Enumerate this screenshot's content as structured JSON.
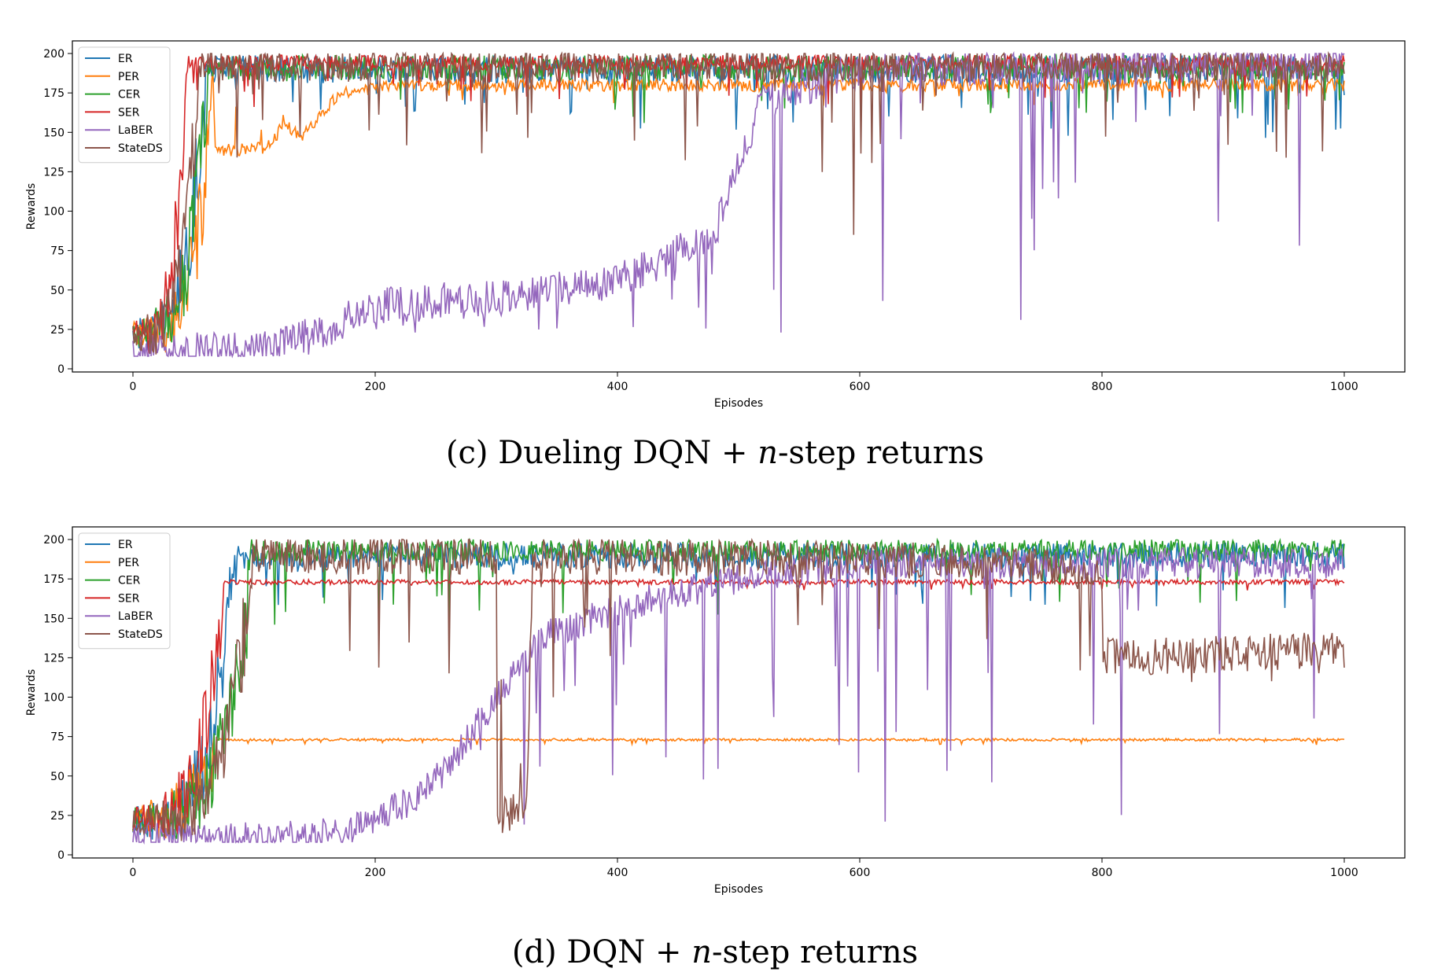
{
  "chart_data": [
    {
      "type": "line",
      "caption": {
        "prefix": "(c) Dueling DQN + ",
        "italic": "n",
        "suffix": "-step returns"
      },
      "xlabel": "Episodes",
      "ylabel": "Rewards",
      "xlim": [
        -50,
        1050
      ],
      "ylim": [
        -2,
        208
      ],
      "xticks": [
        0,
        200,
        400,
        600,
        800,
        1000
      ],
      "yticks": [
        0,
        25,
        50,
        75,
        100,
        125,
        150,
        175,
        200
      ],
      "grid": false,
      "legend_position": "top-left",
      "series": [
        {
          "name": "ER",
          "color": "#1f77b4",
          "model": {
            "rise": 60,
            "start": 22,
            "noise_early": 8,
            "plateau": 190,
            "noise": 9,
            "floor": 150,
            "cap": 200
          }
        },
        {
          "name": "PER",
          "color": "#ff7f0e",
          "model": {
            "rise": 68,
            "start": 22,
            "noise_early": 8,
            "stages": [
              [
                55,
                138
              ],
              [
                110,
                140
              ],
              [
                125,
                155
              ],
              [
                140,
                148
              ],
              [
                170,
                175
              ],
              [
                220,
                180
              ]
            ],
            "plateau": 181,
            "noise": 4,
            "floor": 170,
            "cap": 200
          }
        },
        {
          "name": "CER",
          "color": "#2ca02c",
          "model": {
            "rise": 62,
            "start": 22,
            "noise_early": 8,
            "plateau": 191,
            "noise": 8,
            "floor": 155,
            "cap": 200
          }
        },
        {
          "name": "SER",
          "color": "#d62728",
          "model": {
            "rise": 45,
            "start": 22,
            "noise_early": 8,
            "plateau": 194,
            "noise": 5,
            "floor": 170,
            "cap": 200
          }
        },
        {
          "name": "LaBER",
          "color": "#9467bd",
          "model": {
            "rise": 0,
            "start": 15,
            "noise_early": 3,
            "stages": [
              [
                100,
                11
              ],
              [
                150,
                22
              ],
              [
                200,
                40
              ],
              [
                300,
                45
              ],
              [
                400,
                55
              ],
              [
                480,
                85
              ],
              [
                520,
                170
              ],
              [
                600,
                190
              ],
              [
                1000,
                195
              ]
            ],
            "plateau": 195,
            "noise": 12,
            "floor": 8,
            "cap": 200
          }
        },
        {
          "name": "StateDS",
          "color": "#8c564b",
          "model": {
            "rise": 55,
            "start": 22,
            "noise_early": 8,
            "plateau": 192,
            "noise": 10,
            "floor": 130,
            "cap": 200,
            "dips": [
              [
                595,
                85
              ]
            ]
          }
        }
      ]
    },
    {
      "type": "line",
      "caption": {
        "prefix": "(d) DQN + ",
        "italic": "n",
        "suffix": "-step returns"
      },
      "xlabel": "Episodes",
      "ylabel": "Rewards",
      "xlim": [
        -50,
        1050
      ],
      "ylim": [
        -2,
        208
      ],
      "xticks": [
        0,
        200,
        400,
        600,
        800,
        1000
      ],
      "yticks": [
        0,
        25,
        50,
        75,
        100,
        125,
        150,
        175,
        200
      ],
      "grid": false,
      "legend_position": "top-left",
      "series": [
        {
          "name": "ER",
          "color": "#1f77b4",
          "model": {
            "rise": 85,
            "start": 22,
            "noise_early": 8,
            "plateau": 190,
            "noise": 8,
            "floor": 160,
            "cap": 200
          }
        },
        {
          "name": "PER",
          "color": "#ff7f0e",
          "model": {
            "rise": 70,
            "start": 22,
            "noise_early": 8,
            "plateau": 73,
            "noise": 0.8,
            "floor": 70,
            "cap": 76
          }
        },
        {
          "name": "CER",
          "color": "#2ca02c",
          "model": {
            "rise": 100,
            "start": 22,
            "noise_early": 8,
            "plateau": 193,
            "noise": 7,
            "floor": 150,
            "cap": 200
          }
        },
        {
          "name": "SER",
          "color": "#d62728",
          "model": {
            "rise": 75,
            "start": 22,
            "noise_early": 8,
            "plateau": 173,
            "noise": 1.5,
            "floor": 168,
            "cap": 178
          }
        },
        {
          "name": "LaBER",
          "color": "#9467bd",
          "model": {
            "rise": 0,
            "start": 15,
            "noise_early": 3,
            "stages": [
              [
                60,
                11
              ],
              [
                120,
                11
              ],
              [
                180,
                16
              ],
              [
                230,
                35
              ],
              [
                260,
                55
              ],
              [
                300,
                100
              ],
              [
                340,
                140
              ],
              [
                420,
                160
              ],
              [
                500,
                175
              ],
              [
                600,
                185
              ],
              [
                1000,
                185
              ]
            ],
            "plateau": 185,
            "noise": 10,
            "floor": 8,
            "cap": 200
          }
        },
        {
          "name": "StateDS",
          "color": "#8c564b",
          "model": {
            "rise": 100,
            "start": 22,
            "noise_early": 8,
            "stages": [
              [
                300,
                190
              ],
              [
                301,
                25
              ],
              [
                325,
                30
              ],
              [
                330,
                190
              ],
              [
                740,
                185
              ],
              [
                800,
                175
              ],
              [
                801,
                125
              ],
              [
                1000,
                130
              ]
            ],
            "plateau": 190,
            "noise": 12,
            "floor": 110,
            "cap": 200
          }
        }
      ]
    }
  ]
}
